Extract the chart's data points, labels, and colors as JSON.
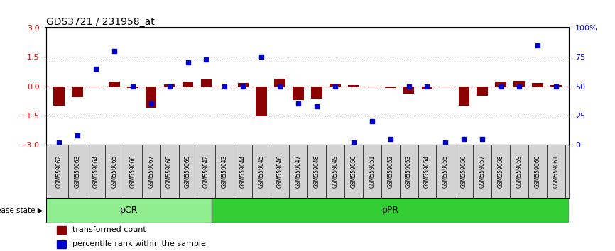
{
  "title": "GDS3721 / 231958_at",
  "samples": [
    "GSM559062",
    "GSM559063",
    "GSM559064",
    "GSM559065",
    "GSM559066",
    "GSM559067",
    "GSM559068",
    "GSM559069",
    "GSM559042",
    "GSM559043",
    "GSM559044",
    "GSM559045",
    "GSM559046",
    "GSM559047",
    "GSM559048",
    "GSM559049",
    "GSM559050",
    "GSM559051",
    "GSM559052",
    "GSM559053",
    "GSM559054",
    "GSM559055",
    "GSM559056",
    "GSM559057",
    "GSM559058",
    "GSM559059",
    "GSM559060",
    "GSM559061"
  ],
  "transformed_count": [
    -1.0,
    -0.55,
    -0.05,
    0.25,
    -0.08,
    -1.1,
    0.08,
    0.22,
    0.35,
    -0.05,
    0.18,
    -1.55,
    0.38,
    -0.7,
    -0.62,
    0.12,
    0.07,
    -0.05,
    -0.08,
    -0.38,
    -0.15,
    -0.05,
    -1.0,
    -0.5,
    0.22,
    0.28,
    0.18,
    0.05
  ],
  "percentile_rank": [
    2,
    8,
    65,
    80,
    50,
    35,
    50,
    70,
    73,
    50,
    50,
    75,
    50,
    35,
    33,
    50,
    2,
    20,
    5,
    50,
    50,
    2,
    5,
    5,
    50,
    50,
    85,
    50
  ],
  "pCR_count": 9,
  "pPR_count": 19,
  "bar_color": "#8B0000",
  "dot_color": "#0000CD",
  "pCR_color": "#90EE90",
  "pPR_color": "#32CD32",
  "ylim_left": [
    -3,
    3
  ],
  "ylim_right": [
    0,
    100
  ],
  "left_ticks": [
    -3,
    -1.5,
    0,
    1.5,
    3
  ],
  "right_ticks": [
    0,
    25,
    50,
    75,
    100
  ],
  "right_tick_labels": [
    "0",
    "25",
    "50",
    "75",
    "100%"
  ],
  "hlines_black": [
    1.5,
    -1.5
  ],
  "hline_red": 0
}
